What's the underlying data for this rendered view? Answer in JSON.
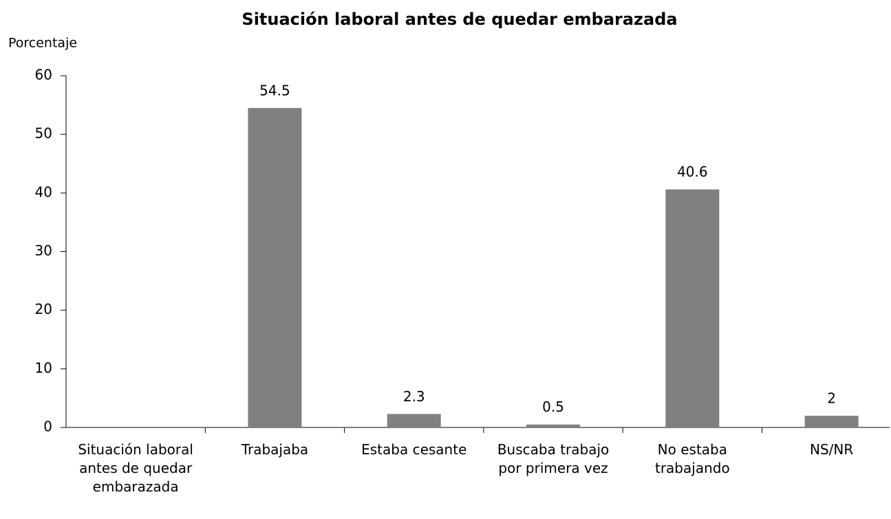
{
  "chart_data": {
    "type": "bar",
    "title": "Situación laboral antes de quedar embarazada",
    "y_label": "Porcentaje",
    "categories": [
      "Situación laboral antes de quedar embarazada",
      "Trabajaba",
      "Estaba cesante",
      "Buscaba trabajo por primera vez",
      "No estaba trabajando",
      "NS/NR"
    ],
    "values": [
      null,
      54.5,
      2.3,
      0.5,
      40.6,
      2
    ],
    "color": "#808080",
    "ylim": [
      0,
      60
    ],
    "yticks": [
      0,
      10,
      20,
      30,
      40,
      50,
      60
    ],
    "grid": false
  }
}
